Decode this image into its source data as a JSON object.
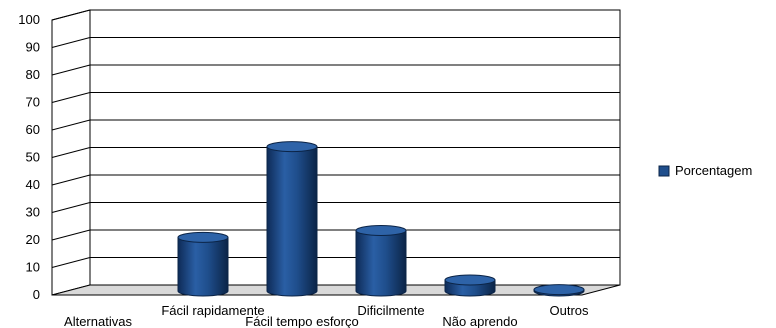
{
  "chart_data": {
    "type": "bar",
    "categories": [
      "Alternativas",
      "Fácil rapidamente",
      "Fácil tempo esforço",
      "Dificilmente",
      "Não aprendo",
      "Outros"
    ],
    "series": [
      {
        "name": "Porcentagem",
        "values": [
          0,
          19.5,
          52.5,
          22,
          4,
          0.5
        ]
      }
    ],
    "ylim": [
      0,
      100
    ],
    "yticks": [
      0,
      10,
      20,
      30,
      40,
      50,
      60,
      70,
      80,
      90,
      100
    ],
    "grid": true,
    "legend": "right",
    "style": "3d-cylinder",
    "colors": {
      "bar": "#1f4e8c",
      "bar_dark": "#0f2f5e",
      "bar_top": "#2e63a8",
      "grid": "#000000",
      "floor": "#d9d9d9"
    }
  }
}
